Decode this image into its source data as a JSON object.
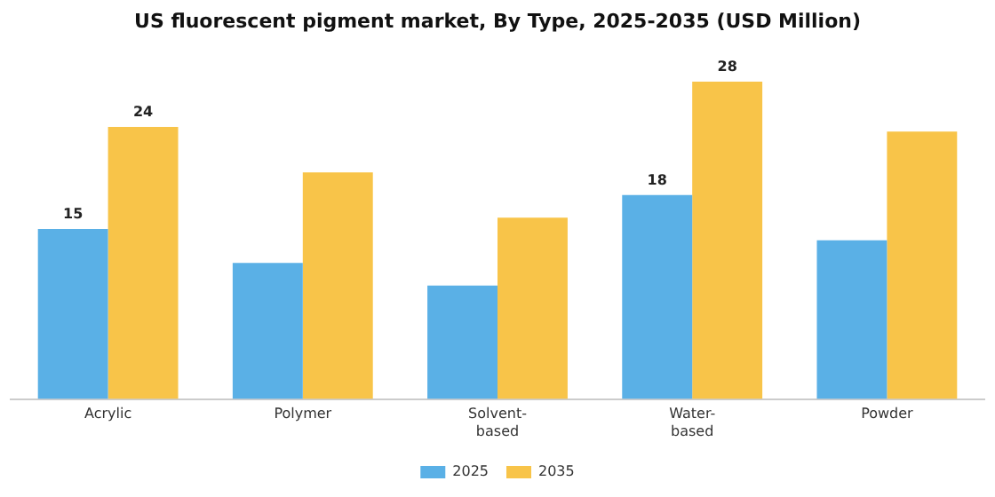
{
  "chart_data": {
    "type": "bar",
    "title": "US fluorescent pigment market, By Type, 2025-2035 (USD Million)",
    "categories": [
      "Acrylic",
      "Polymer",
      "Solvent-based",
      "Water-based",
      "Powder"
    ],
    "series": [
      {
        "name": "2025",
        "color": "#5ab0e6",
        "values": [
          15,
          12,
          10,
          18,
          14
        ],
        "value_labels": [
          "15",
          null,
          null,
          "18",
          null
        ]
      },
      {
        "name": "2035",
        "color": "#f8c449",
        "values": [
          24,
          20,
          16,
          28,
          23.6
        ],
        "value_labels": [
          "24",
          null,
          null,
          "28",
          null
        ]
      }
    ],
    "legend": "bottom",
    "grid": false
  }
}
